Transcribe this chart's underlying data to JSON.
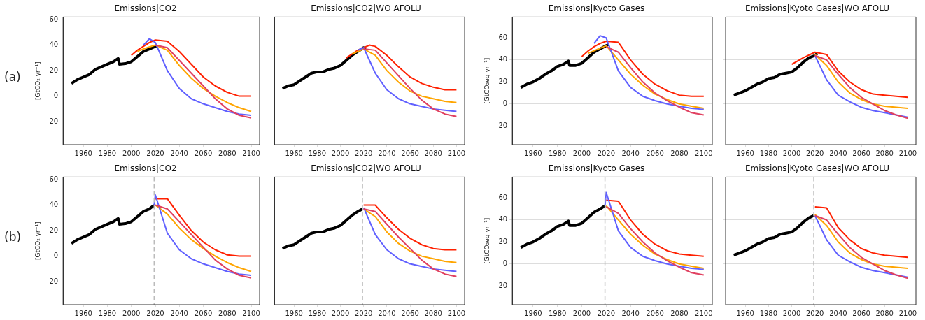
{
  "chart_data": [
    {
      "type": "line",
      "title": "Emissions|CO2",
      "ylabel": "[GtCO₂ yr⁻¹]",
      "annotations": [
        "(a)"
      ],
      "xlim": [
        1943,
        2107
      ],
      "xticks": [
        1960,
        1980,
        2000,
        2020,
        2040,
        2060,
        2080,
        2100
      ],
      "ylim": [
        -38,
        62
      ],
      "yticks": [
        -20,
        0,
        20,
        40,
        60
      ],
      "grid": "y",
      "series": [
        {
          "color": "#e04060",
          "x": [
            2020,
            2030,
            2040,
            2050,
            2060,
            2070,
            2080,
            2090,
            2100
          ],
          "values": [
            40,
            38,
            28,
            18,
            8,
            -2,
            -10,
            -15,
            -17
          ]
        },
        {
          "color": "#6060ff",
          "x": [
            2010,
            2015,
            2020,
            2030,
            2040,
            2050,
            2060,
            2070,
            2080,
            2090,
            2100
          ],
          "values": [
            40,
            45,
            42,
            20,
            6,
            -2,
            -6,
            -9,
            -12,
            -14,
            -15
          ]
        },
        {
          "color": "#ffa500",
          "x": [
            2005,
            2010,
            2020,
            2030,
            2040,
            2050,
            2060,
            2070,
            2080,
            2090,
            2100
          ],
          "values": [
            35,
            37,
            40,
            36,
            24,
            14,
            6,
            0,
            -5,
            -9,
            -12
          ]
        },
        {
          "color": "#ff2000",
          "x": [
            2000,
            2005,
            2010,
            2015,
            2020,
            2030,
            2040,
            2050,
            2060,
            2070,
            2080,
            2090,
            2100
          ],
          "values": [
            32,
            36,
            39,
            42,
            44,
            43,
            35,
            25,
            15,
            8,
            3,
            0,
            0
          ]
        },
        {
          "color": "#000000",
          "x": [
            1950,
            1955,
            1960,
            1965,
            1970,
            1975,
            1980,
            1985,
            1989,
            1990,
            1995,
            2000,
            2005,
            2010,
            2015,
            2020,
            2022
          ],
          "values": [
            10,
            13,
            15,
            17,
            21,
            23,
            25,
            27,
            29.5,
            25,
            25.5,
            27,
            31,
            35,
            37,
            39,
            40
          ]
        }
      ]
    },
    {
      "type": "line",
      "title": "Emissions|CO2|WO AFOLU",
      "tick_labels": "x",
      "xlim": [
        1943,
        2107
      ],
      "xticks": [
        1960,
        1980,
        2000,
        2020,
        2040,
        2060,
        2080,
        2100
      ],
      "ylim": [
        -38,
        62
      ],
      "yticks": [
        -20,
        0,
        20,
        40,
        60
      ],
      "grid": "y",
      "series": [
        {
          "color": "#e04060",
          "x": [
            2020,
            2030,
            2040,
            2050,
            2060,
            2070,
            2080,
            2090,
            2100
          ],
          "values": [
            37,
            36,
            26,
            16,
            6,
            -3,
            -10,
            -14,
            -16
          ]
        },
        {
          "color": "#6060ff",
          "x": [
            2015,
            2020,
            2030,
            2040,
            2050,
            2060,
            2070,
            2080,
            2090,
            2100
          ],
          "values": [
            36,
            38,
            18,
            5,
            -2,
            -6,
            -8,
            -10,
            -11,
            -12
          ]
        },
        {
          "color": "#ffa500",
          "x": [
            2010,
            2020,
            2030,
            2040,
            2050,
            2060,
            2070,
            2080,
            2090,
            2100
          ],
          "values": [
            33,
            37,
            32,
            20,
            11,
            4,
            0,
            -2,
            -4,
            -5
          ]
        },
        {
          "color": "#ff2000",
          "x": [
            2005,
            2010,
            2015,
            2020,
            2025,
            2030,
            2040,
            2050,
            2060,
            2070,
            2080,
            2090,
            2100
          ],
          "values": [
            30,
            33,
            36,
            38,
            40,
            39,
            32,
            23,
            15,
            10,
            7,
            5,
            5
          ]
        },
        {
          "color": "#000000",
          "x": [
            1950,
            1955,
            1960,
            1965,
            1970,
            1975,
            1980,
            1985,
            1990,
            1995,
            2000,
            2005,
            2010,
            2015,
            2020,
            2022
          ],
          "values": [
            6,
            8,
            9,
            12,
            15,
            18,
            19,
            19,
            21,
            22,
            24,
            28,
            32,
            35,
            38,
            37
          ]
        }
      ]
    },
    {
      "type": "line",
      "title": "Emissions|Kyoto Gases",
      "ylabel": "[GtCO₂eq yr⁻¹]",
      "xlim": [
        1943,
        2107
      ],
      "xticks": [
        1960,
        1980,
        2000,
        2020,
        2040,
        2060,
        2080,
        2100
      ],
      "ylim": [
        -37,
        79
      ],
      "yticks": [
        -20,
        0,
        20,
        40,
        60
      ],
      "grid": "y",
      "series": [
        {
          "color": "#e04060",
          "x": [
            2020,
            2030,
            2040,
            2050,
            2060,
            2070,
            2080,
            2090,
            2100
          ],
          "values": [
            52,
            47,
            33,
            20,
            10,
            3,
            -3,
            -8,
            -10
          ]
        },
        {
          "color": "#6060ff",
          "x": [
            2010,
            2015,
            2020,
            2030,
            2040,
            2050,
            2060,
            2070,
            2080,
            2090,
            2100
          ],
          "values": [
            55,
            62,
            60,
            30,
            15,
            7,
            3,
            0,
            -2,
            -4,
            -5
          ]
        },
        {
          "color": "#ffa500",
          "x": [
            2005,
            2020,
            2030,
            2040,
            2050,
            2060,
            2070,
            2080,
            2090,
            2100
          ],
          "values": [
            46,
            53,
            40,
            27,
            17,
            9,
            4,
            0,
            -2,
            -4
          ]
        },
        {
          "color": "#ff2000",
          "x": [
            2000,
            2005,
            2010,
            2015,
            2020,
            2030,
            2040,
            2050,
            2060,
            2070,
            2080,
            2090,
            2100
          ],
          "values": [
            43,
            48,
            52,
            55,
            57,
            56,
            40,
            27,
            18,
            12,
            8,
            7,
            7
          ]
        },
        {
          "color": "#000000",
          "x": [
            1950,
            1955,
            1960,
            1965,
            1970,
            1975,
            1980,
            1985,
            1989,
            1990,
            1995,
            2000,
            2005,
            2010,
            2015,
            2020,
            2022
          ],
          "values": [
            15,
            18,
            20,
            23,
            27,
            30,
            34,
            36,
            39,
            35,
            35,
            37,
            42,
            47,
            50,
            53,
            54
          ]
        }
      ]
    },
    {
      "type": "line",
      "title": "Emissions|Kyoto Gases|WO AFOLU",
      "tick_labels": "x",
      "xlim": [
        1943,
        2107
      ],
      "xticks": [
        1960,
        1980,
        2000,
        2020,
        2040,
        2060,
        2080,
        2100
      ],
      "ylim": [
        -37,
        79
      ],
      "yticks": [
        -20,
        0,
        20,
        40,
        60
      ],
      "grid": "y",
      "series": [
        {
          "color": "#e04060",
          "x": [
            2020,
            2030,
            2040,
            2050,
            2060,
            2070,
            2080,
            2090,
            2100
          ],
          "values": [
            44,
            40,
            27,
            15,
            6,
            0,
            -6,
            -10,
            -13
          ]
        },
        {
          "color": "#6060ff",
          "x": [
            2020,
            2030,
            2040,
            2050,
            2060,
            2070,
            2080,
            2090,
            2100
          ],
          "values": [
            44,
            22,
            8,
            2,
            -3,
            -6,
            -8,
            -10,
            -12
          ]
        },
        {
          "color": "#ffa500",
          "x": [
            2020,
            2030,
            2040,
            2050,
            2060,
            2070,
            2080,
            2090,
            2100
          ],
          "values": [
            45,
            35,
            20,
            10,
            4,
            0,
            -2,
            -3,
            -4
          ]
        },
        {
          "color": "#ff2000",
          "x": [
            2000,
            2010,
            2020,
            2030,
            2040,
            2050,
            2060,
            2070,
            2080,
            2090,
            2100
          ],
          "values": [
            36,
            42,
            47,
            45,
            30,
            20,
            13,
            9,
            8,
            7,
            6
          ]
        },
        {
          "color": "#000000",
          "x": [
            1950,
            1955,
            1960,
            1965,
            1970,
            1975,
            1980,
            1985,
            1990,
            1995,
            2000,
            2005,
            2010,
            2015,
            2020,
            2022
          ],
          "values": [
            8,
            10,
            12,
            15,
            18,
            20,
            23,
            24,
            27,
            28,
            29,
            33,
            38,
            42,
            44,
            46
          ]
        }
      ]
    },
    {
      "type": "line",
      "title": "Emissions|CO2",
      "ylabel": "[GtCO₂ yr⁻¹]",
      "annotations": [
        "(b)"
      ],
      "xlim": [
        1943,
        2107
      ],
      "xticks": [
        1960,
        1980,
        2000,
        2020,
        2040,
        2060,
        2080,
        2100
      ],
      "ylim": [
        -38,
        62
      ],
      "yticks": [
        -20,
        0,
        20,
        40,
        60
      ],
      "grid": "y",
      "ref_lines": [
        {
          "axis": "x",
          "value": 2019,
          "color": "#bbbbbb",
          "line_style": "dashed"
        }
      ],
      "series": [
        {
          "color": "#e04060",
          "x": [
            2020,
            2030,
            2040,
            2050,
            2060,
            2070,
            2080,
            2090,
            2100
          ],
          "values": [
            40,
            37,
            27,
            17,
            7,
            -3,
            -10,
            -15,
            -17
          ]
        },
        {
          "color": "#6060ff",
          "x": [
            2019,
            2020,
            2030,
            2040,
            2050,
            2060,
            2070,
            2080,
            2090,
            2100
          ],
          "values": [
            40,
            48,
            18,
            5,
            -2,
            -6,
            -9,
            -12,
            -14,
            -15
          ]
        },
        {
          "color": "#ffa500",
          "x": [
            2020,
            2030,
            2040,
            2050,
            2060,
            2070,
            2080,
            2090,
            2100
          ],
          "values": [
            40,
            33,
            22,
            13,
            6,
            0,
            -5,
            -9,
            -12
          ]
        },
        {
          "color": "#ff2000",
          "x": [
            2020,
            2030,
            2040,
            2050,
            2060,
            2070,
            2080,
            2090,
            2100
          ],
          "values": [
            45,
            45,
            32,
            20,
            11,
            5,
            1,
            0,
            0
          ]
        },
        {
          "color": "#000000",
          "x": [
            1950,
            1955,
            1960,
            1965,
            1970,
            1975,
            1980,
            1985,
            1989,
            1990,
            1995,
            2000,
            2005,
            2010,
            2015,
            2019
          ],
          "values": [
            10,
            13,
            15,
            17,
            21,
            23,
            25,
            27,
            29.5,
            25,
            25.5,
            27,
            31,
            35,
            37,
            40
          ]
        }
      ]
    },
    {
      "type": "line",
      "title": "Emissions|CO2|WO AFOLU",
      "tick_labels": "x",
      "xlim": [
        1943,
        2107
      ],
      "xticks": [
        1960,
        1980,
        2000,
        2020,
        2040,
        2060,
        2080,
        2100
      ],
      "ylim": [
        -38,
        62
      ],
      "yticks": [
        -20,
        0,
        20,
        40,
        60
      ],
      "grid": "y",
      "ref_lines": [
        {
          "axis": "x",
          "value": 2019,
          "color": "#bbbbbb",
          "line_style": "dashed"
        }
      ],
      "series": [
        {
          "color": "#e04060",
          "x": [
            2020,
            2030,
            2040,
            2050,
            2060,
            2070,
            2080,
            2090,
            2100
          ],
          "values": [
            37,
            35,
            25,
            15,
            6,
            -3,
            -10,
            -14,
            -16
          ]
        },
        {
          "color": "#6060ff",
          "x": [
            2020,
            2030,
            2040,
            2050,
            2060,
            2070,
            2080,
            2090,
            2100
          ],
          "values": [
            38,
            17,
            5,
            -2,
            -6,
            -8,
            -10,
            -11,
            -12
          ]
        },
        {
          "color": "#ffa500",
          "x": [
            2020,
            2030,
            2040,
            2050,
            2060,
            2070,
            2080,
            2090,
            2100
          ],
          "values": [
            37,
            31,
            19,
            10,
            4,
            0,
            -2,
            -4,
            -5
          ]
        },
        {
          "color": "#ff2000",
          "x": [
            2020,
            2030,
            2040,
            2050,
            2060,
            2070,
            2080,
            2090,
            2100
          ],
          "values": [
            40,
            40,
            30,
            21,
            14,
            9,
            6,
            5,
            5
          ]
        },
        {
          "color": "#000000",
          "x": [
            1950,
            1955,
            1960,
            1965,
            1970,
            1975,
            1980,
            1985,
            1990,
            1995,
            2000,
            2005,
            2010,
            2015,
            2019
          ],
          "values": [
            6,
            8,
            9,
            12,
            15,
            18,
            19,
            19,
            21,
            22,
            24,
            28,
            32,
            35,
            37
          ]
        }
      ]
    },
    {
      "type": "line",
      "title": "Emissions|Kyoto Gases",
      "ylabel": "[GtCO₂eq yr⁻¹]",
      "xlim": [
        1943,
        2107
      ],
      "xticks": [
        1960,
        1980,
        2000,
        2020,
        2040,
        2060,
        2080,
        2100
      ],
      "ylim": [
        -37,
        79
      ],
      "yticks": [
        -20,
        0,
        20,
        40,
        60
      ],
      "grid": "y",
      "ref_lines": [
        {
          "axis": "x",
          "value": 2019,
          "color": "#bbbbbb",
          "line_style": "dashed"
        }
      ],
      "series": [
        {
          "color": "#e04060",
          "x": [
            2020,
            2030,
            2040,
            2050,
            2060,
            2070,
            2080,
            2090,
            2100
          ],
          "values": [
            52,
            46,
            32,
            20,
            10,
            3,
            -3,
            -8,
            -10
          ]
        },
        {
          "color": "#6060ff",
          "x": [
            2019,
            2020,
            2030,
            2040,
            2050,
            2060,
            2070,
            2080,
            2090,
            2100
          ],
          "values": [
            53,
            65,
            30,
            15,
            7,
            3,
            0,
            -2,
            -4,
            -5
          ]
        },
        {
          "color": "#ffa500",
          "x": [
            2020,
            2030,
            2040,
            2050,
            2060,
            2070,
            2080,
            2090,
            2100
          ],
          "values": [
            53,
            40,
            27,
            17,
            9,
            4,
            0,
            -2,
            -4
          ]
        },
        {
          "color": "#ff2000",
          "x": [
            2020,
            2030,
            2040,
            2050,
            2060,
            2070,
            2080,
            2090,
            2100
          ],
          "values": [
            58,
            57,
            40,
            27,
            18,
            12,
            9,
            8,
            7
          ]
        },
        {
          "color": "#000000",
          "x": [
            1950,
            1955,
            1960,
            1965,
            1970,
            1975,
            1980,
            1985,
            1989,
            1990,
            1995,
            2000,
            2005,
            2010,
            2015,
            2019
          ],
          "values": [
            15,
            18,
            20,
            23,
            27,
            30,
            34,
            36,
            39,
            35,
            35,
            37,
            42,
            47,
            50,
            53
          ]
        }
      ]
    },
    {
      "type": "line",
      "title": "Emissions|Kyoto Gases|WO AFOLU",
      "tick_labels": "x",
      "xlim": [
        1943,
        2107
      ],
      "xticks": [
        1960,
        1980,
        2000,
        2020,
        2040,
        2060,
        2080,
        2100
      ],
      "ylim": [
        -37,
        79
      ],
      "yticks": [
        -20,
        0,
        20,
        40,
        60
      ],
      "grid": "y",
      "ref_lines": [
        {
          "axis": "x",
          "value": 2019,
          "color": "#bbbbbb",
          "line_style": "dashed"
        }
      ],
      "series": [
        {
          "color": "#e04060",
          "x": [
            2020,
            2030,
            2040,
            2050,
            2060,
            2070,
            2080,
            2090,
            2100
          ],
          "values": [
            44,
            40,
            27,
            15,
            6,
            0,
            -6,
            -10,
            -13
          ]
        },
        {
          "color": "#6060ff",
          "x": [
            2020,
            2030,
            2040,
            2050,
            2060,
            2070,
            2080,
            2090,
            2100
          ],
          "values": [
            44,
            22,
            8,
            2,
            -3,
            -6,
            -8,
            -10,
            -12
          ]
        },
        {
          "color": "#ffa500",
          "x": [
            2020,
            2030,
            2040,
            2050,
            2060,
            2070,
            2080,
            2090,
            2100
          ],
          "values": [
            45,
            35,
            20,
            10,
            4,
            0,
            -2,
            -3,
            -4
          ]
        },
        {
          "color": "#ff2000",
          "x": [
            2020,
            2030,
            2040,
            2050,
            2060,
            2070,
            2080,
            2090,
            2100
          ],
          "values": [
            52,
            51,
            33,
            22,
            14,
            10,
            8,
            7,
            6
          ]
        },
        {
          "color": "#000000",
          "x": [
            1950,
            1955,
            1960,
            1965,
            1970,
            1975,
            1980,
            1985,
            1990,
            1995,
            2000,
            2005,
            2010,
            2015,
            2019
          ],
          "values": [
            8,
            10,
            12,
            15,
            18,
            20,
            23,
            24,
            27,
            28,
            29,
            33,
            38,
            42,
            44
          ]
        }
      ]
    }
  ]
}
